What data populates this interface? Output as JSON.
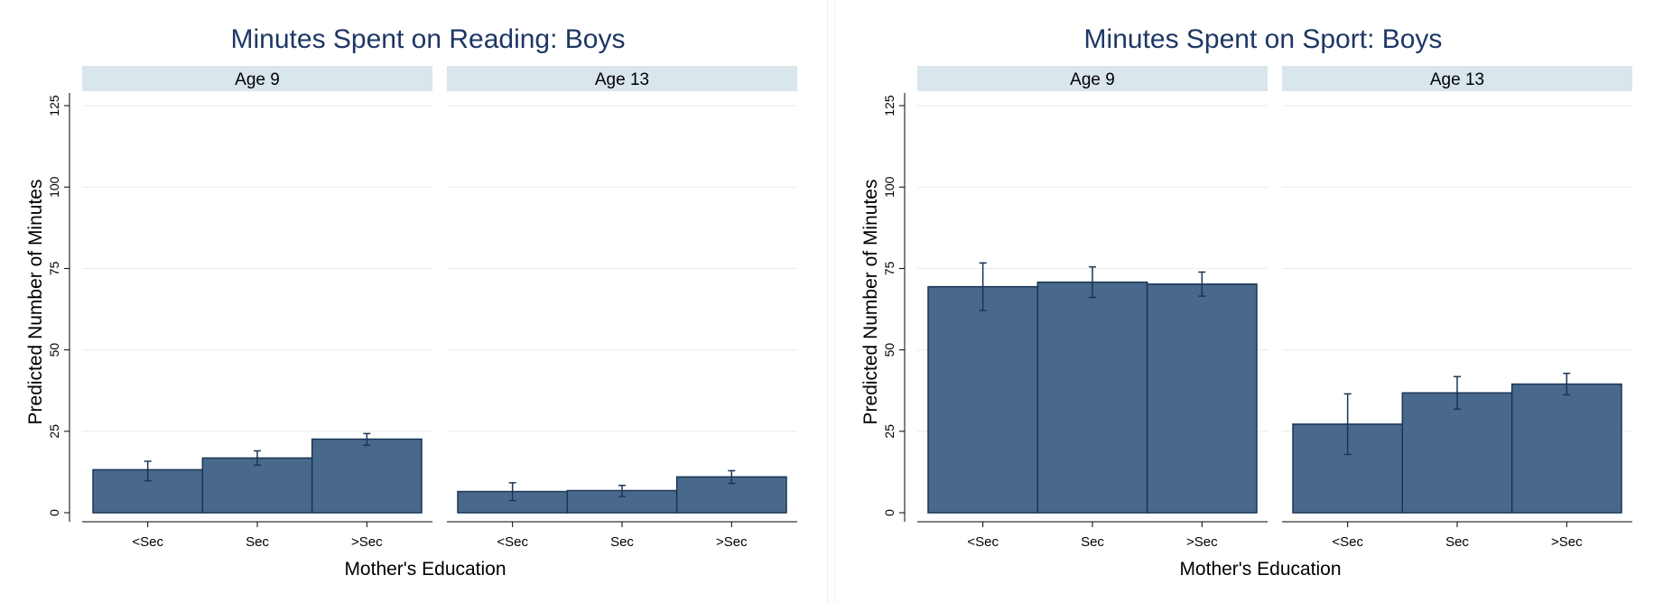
{
  "chart_data": [
    {
      "type": "bar",
      "title": "Minutes Spent on Reading: Boys",
      "xlabel": "Mother's Education",
      "ylabel": "Predicted Number of Minutes",
      "ylim": [
        0,
        130
      ],
      "yticks": [
        0,
        25,
        50,
        75,
        100,
        125
      ],
      "grid": true,
      "categories": [
        "<Sec",
        "Sec",
        ">Sec"
      ],
      "facets": [
        {
          "label": "Age 9",
          "values": [
            13.2,
            16.8,
            22.6
          ],
          "ci_low": [
            9.8,
            14.6,
            20.7
          ],
          "ci_high": [
            15.8,
            19.0,
            24.3
          ]
        },
        {
          "label": "Age 13",
          "values": [
            6.5,
            6.8,
            11.0
          ],
          "ci_low": [
            3.7,
            5.0,
            9.0
          ],
          "ci_high": [
            9.2,
            8.4,
            12.9
          ]
        }
      ],
      "bar_color": "#49698c"
    },
    {
      "type": "bar",
      "title": "Minutes Spent on Sport: Boys",
      "xlabel": "Mother's Education",
      "ylabel": "Predicted Number of Minutes",
      "ylim": [
        0,
        130
      ],
      "yticks": [
        0,
        25,
        50,
        75,
        100,
        125
      ],
      "grid": true,
      "categories": [
        "<Sec",
        "Sec",
        ">Sec"
      ],
      "facets": [
        {
          "label": "Age 9",
          "values": [
            69.4,
            70.8,
            70.2
          ],
          "ci_low": [
            62.1,
            66.1,
            66.5
          ],
          "ci_high": [
            76.7,
            75.5,
            73.9
          ]
        },
        {
          "label": "Age 13",
          "values": [
            27.2,
            36.8,
            39.5
          ],
          "ci_low": [
            17.9,
            31.8,
            36.2
          ],
          "ci_high": [
            36.5,
            41.8,
            42.8
          ]
        }
      ],
      "bar_color": "#49698c"
    }
  ]
}
